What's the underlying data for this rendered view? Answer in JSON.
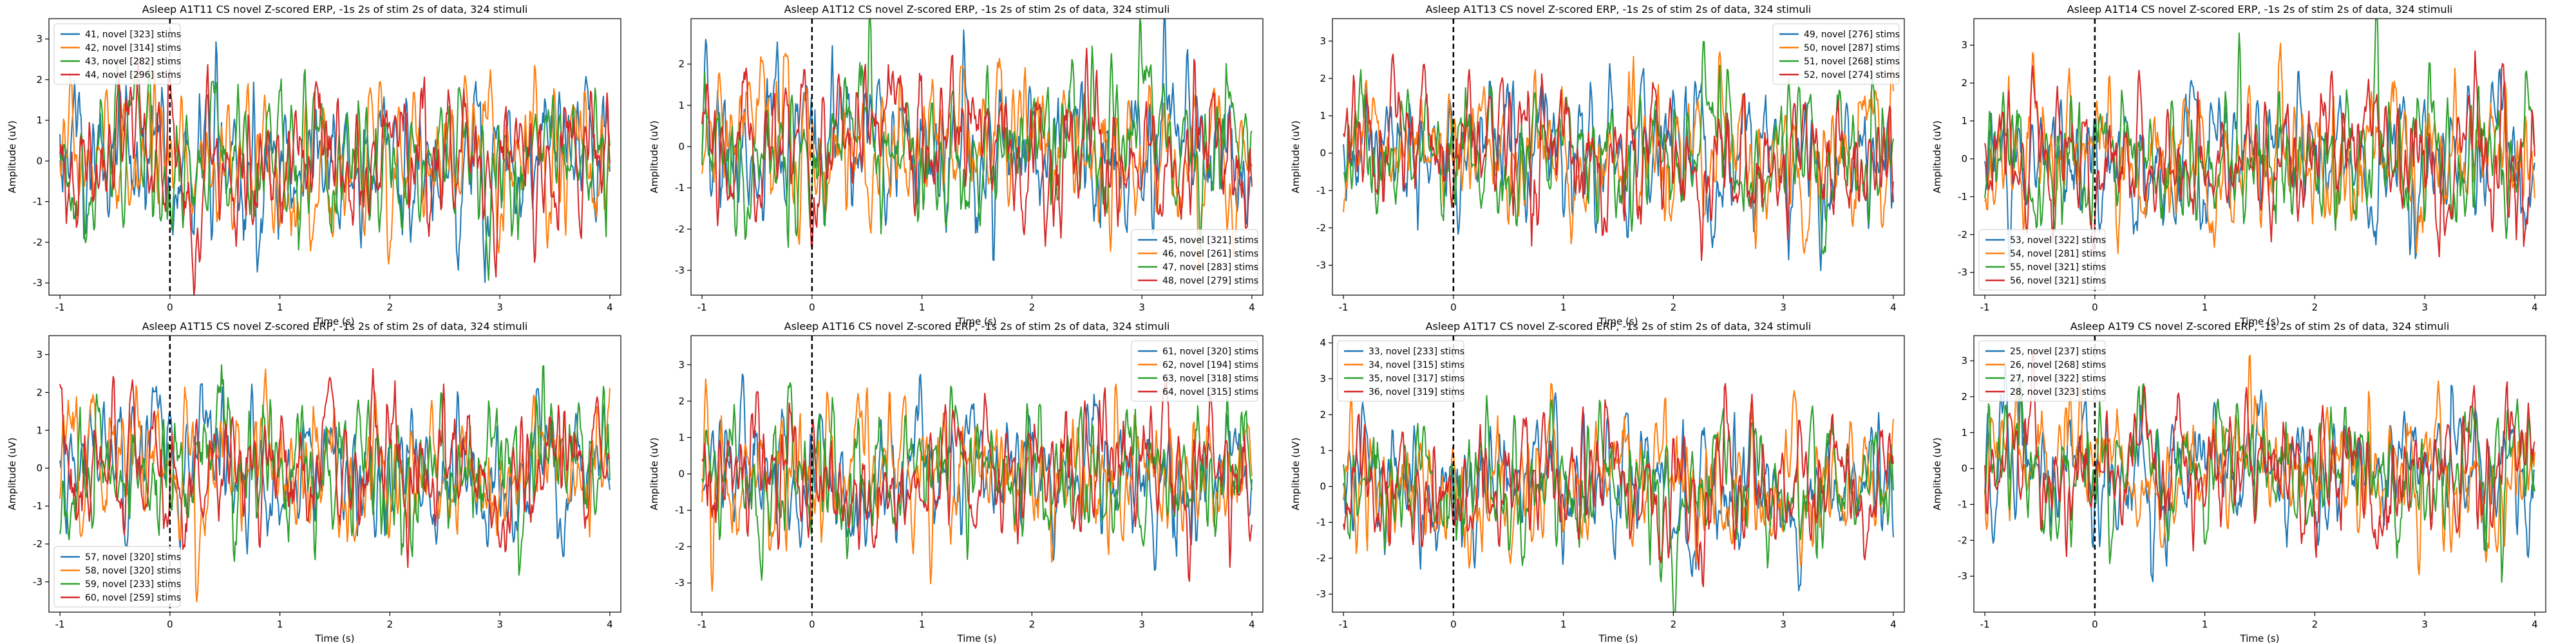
{
  "figure": {
    "colors": [
      "#1f77b4",
      "#ff7f0e",
      "#2ca02c",
      "#d62728"
    ]
  },
  "chart_data": [
    {
      "type": "line",
      "title": "Asleep A1T11 CS novel Z-scored ERP, -1s 2s of stim 2s of data, 324 stimuli",
      "xlabel": "Time (s)",
      "ylabel": "Amplitude (uV)",
      "xlim": [
        -1.1,
        4.1
      ],
      "ylim": [
        -3.3,
        3.5
      ],
      "xticks": [
        "-1",
        "0",
        "1",
        "2",
        "3",
        "4"
      ],
      "yticks": [
        "-3",
        "-2",
        "-1",
        "0",
        "1",
        "2",
        "3"
      ],
      "legend_loc": "upper-left",
      "stim_line_x": 0,
      "series": [
        {
          "name": "41, novel [323] stims"
        },
        {
          "name": "42, novel [314] stims"
        },
        {
          "name": "43, novel [282] stims"
        },
        {
          "name": "44, novel [296] stims"
        }
      ]
    },
    {
      "type": "line",
      "title": "Asleep A1T12 CS novel Z-scored ERP, -1s 2s of stim 2s of data, 324 stimuli",
      "xlabel": "Time (s)",
      "ylabel": "Amplitude (uV)",
      "xlim": [
        -1.1,
        4.1
      ],
      "ylim": [
        -3.6,
        3.1
      ],
      "xticks": [
        "-1",
        "0",
        "1",
        "2",
        "3",
        "4"
      ],
      "yticks": [
        "-3",
        "-2",
        "-1",
        "0",
        "1",
        "2"
      ],
      "legend_loc": "lower-right",
      "stim_line_x": 0,
      "series": [
        {
          "name": "45, novel [321] stims"
        },
        {
          "name": "46, novel [261] stims"
        },
        {
          "name": "47, novel [283] stims"
        },
        {
          "name": "48, novel [279] stims"
        }
      ]
    },
    {
      "type": "line",
      "title": "Asleep A1T13 CS novel Z-scored ERP, -1s 2s of stim 2s of data, 324 stimuli",
      "xlabel": "Time (s)",
      "ylabel": "Amplitude (uV)",
      "xlim": [
        -1.1,
        4.1
      ],
      "ylim": [
        -3.8,
        3.6
      ],
      "xticks": [
        "-1",
        "0",
        "1",
        "2",
        "3",
        "4"
      ],
      "yticks": [
        "-3",
        "-2",
        "-1",
        "0",
        "1",
        "2",
        "3"
      ],
      "legend_loc": "upper-right",
      "stim_line_x": 0,
      "series": [
        {
          "name": "49, novel [276] stims"
        },
        {
          "name": "50, novel [287] stims"
        },
        {
          "name": "51, novel [268] stims"
        },
        {
          "name": "52, novel [274] stims"
        }
      ]
    },
    {
      "type": "line",
      "title": "Asleep A1T14 CS novel Z-scored ERP, -1s 2s of stim 2s of data, 324 stimuli",
      "xlabel": "Time (s)",
      "ylabel": "Amplitude (uV)",
      "xlim": [
        -1.1,
        4.1
      ],
      "ylim": [
        -3.6,
        3.7
      ],
      "xticks": [
        "-1",
        "0",
        "1",
        "2",
        "3",
        "4"
      ],
      "yticks": [
        "-3",
        "-2",
        "-1",
        "0",
        "1",
        "2",
        "3"
      ],
      "legend_loc": "lower-left",
      "stim_line_x": 0,
      "series": [
        {
          "name": "53, novel [322] stims"
        },
        {
          "name": "54, novel [281] stims"
        },
        {
          "name": "55, novel [321] stims"
        },
        {
          "name": "56, novel [321] stims"
        }
      ]
    },
    {
      "type": "line",
      "title": "Asleep A1T15 CS novel Z-scored ERP, -1s 2s of stim 2s of data, 324 stimuli",
      "xlabel": "Time (s)",
      "ylabel": "Amplitude (uV)",
      "xlim": [
        -1.1,
        4.1
      ],
      "ylim": [
        -3.8,
        3.5
      ],
      "xticks": [
        "-1",
        "0",
        "1",
        "2",
        "3",
        "4"
      ],
      "yticks": [
        "-3",
        "-2",
        "-1",
        "0",
        "1",
        "2",
        "3"
      ],
      "legend_loc": "lower-left",
      "stim_line_x": 0,
      "series": [
        {
          "name": "57, novel [320] stims"
        },
        {
          "name": "58, novel [320] stims"
        },
        {
          "name": "59, novel [233] stims"
        },
        {
          "name": "60, novel [259] stims"
        }
      ]
    },
    {
      "type": "line",
      "title": "Asleep A1T16 CS novel Z-scored ERP, -1s 2s of stim 2s of data, 324 stimuli",
      "xlabel": "Time (s)",
      "ylabel": "Amplitude (uV)",
      "xlim": [
        -1.1,
        4.1
      ],
      "ylim": [
        -3.8,
        3.8
      ],
      "xticks": [
        "-1",
        "0",
        "1",
        "2",
        "3",
        "4"
      ],
      "yticks": [
        "-3",
        "-2",
        "-1",
        "0",
        "1",
        "2",
        "3"
      ],
      "legend_loc": "upper-right",
      "stim_line_x": 0,
      "series": [
        {
          "name": "61, novel [320] stims"
        },
        {
          "name": "62, novel [194] stims"
        },
        {
          "name": "63, novel [318] stims"
        },
        {
          "name": "64, novel [315] stims"
        }
      ]
    },
    {
      "type": "line",
      "title": "Asleep A1T17 CS novel Z-scored ERP, -1s 2s of stim 2s of data, 324 stimuli",
      "xlabel": "Time (s)",
      "ylabel": "Amplitude (uV)",
      "xlim": [
        -1.1,
        4.1
      ],
      "ylim": [
        -3.5,
        4.2
      ],
      "xticks": [
        "-1",
        "0",
        "1",
        "2",
        "3",
        "4"
      ],
      "yticks": [
        "-3",
        "-2",
        "-1",
        "0",
        "1",
        "2",
        "3",
        "4"
      ],
      "legend_loc": "upper-left",
      "stim_line_x": 0,
      "series": [
        {
          "name": "33, novel [233] stims"
        },
        {
          "name": "34, novel [315] stims"
        },
        {
          "name": "35, novel [317] stims"
        },
        {
          "name": "36, novel [319] stims"
        }
      ]
    },
    {
      "type": "line",
      "title": "Asleep A1T9 CS novel Z-scored ERP, -1s 2s of stim 2s of data, 324 stimuli",
      "xlabel": "Time (s)",
      "ylabel": "Amplitude (uV)",
      "xlim": [
        -1.1,
        4.1
      ],
      "ylim": [
        -4.0,
        3.7
      ],
      "xticks": [
        "-1",
        "0",
        "1",
        "2",
        "3",
        "4"
      ],
      "yticks": [
        "-3",
        "-2",
        "-1",
        "0",
        "1",
        "2",
        "3"
      ],
      "legend_loc": "upper-left",
      "stim_line_x": 0,
      "series": [
        {
          "name": "25, novel [237] stims"
        },
        {
          "name": "26, novel [268] stims"
        },
        {
          "name": "27, novel [322] stims"
        },
        {
          "name": "28, novel [323] stims"
        }
      ]
    }
  ]
}
